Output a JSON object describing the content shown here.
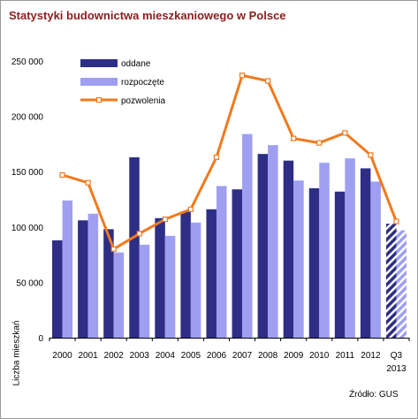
{
  "colors": {
    "oddane": "#2e2e86",
    "rozpoczete": "#9f9ff2",
    "pozwolenia": "#f07a1e",
    "title": "#8b1e1e"
  },
  "chart_data": {
    "type": "bar",
    "title": "Statystyki budownictwa mieszkaniowego w Polsce",
    "ylabel": "Liczba mieszkań",
    "xlabel": "",
    "source": "Źródło: GUS",
    "ylim": [
      0,
      250000
    ],
    "yticks": [
      "0",
      "50 000",
      "100 000",
      "150 000",
      "200 000",
      "250 000"
    ],
    "ytick_values": [
      0,
      50000,
      100000,
      150000,
      200000,
      250000
    ],
    "categories": [
      "2000",
      "2001",
      "2002",
      "2003",
      "2004",
      "2005",
      "2006",
      "2007",
      "2008",
      "2009",
      "2010",
      "2011",
      "2012",
      "Q3 2013"
    ],
    "category_labels": [
      [
        "2000"
      ],
      [
        "2001"
      ],
      [
        "2002"
      ],
      [
        "2003"
      ],
      [
        "2004"
      ],
      [
        "2005"
      ],
      [
        "2006"
      ],
      [
        "2007"
      ],
      [
        "2008"
      ],
      [
        "2009"
      ],
      [
        "2010"
      ],
      [
        "2011"
      ],
      [
        "2012"
      ],
      [
        "Q3",
        "2013"
      ]
    ],
    "legend_position": "top-left",
    "grid": false,
    "hatched_category": "Q3 2013",
    "series": [
      {
        "name": "oddane",
        "type": "bar",
        "color": "#2e2e86",
        "values": [
          88000,
          106000,
          98000,
          163000,
          108000,
          114000,
          116000,
          134000,
          166000,
          160000,
          135000,
          132000,
          153000,
          103000
        ]
      },
      {
        "name": "rozpoczęte",
        "type": "bar",
        "color": "#9f9ff2",
        "values": [
          124000,
          112000,
          77000,
          84000,
          92000,
          104000,
          137000,
          184000,
          174000,
          142000,
          158000,
          162000,
          141000,
          97000
        ]
      },
      {
        "name": "pozwolenia",
        "type": "line",
        "color": "#f07a1e",
        "values": [
          147000,
          140000,
          80000,
          94000,
          107000,
          116000,
          163000,
          237000,
          232000,
          180000,
          176000,
          185000,
          165000,
          105000
        ]
      }
    ]
  }
}
